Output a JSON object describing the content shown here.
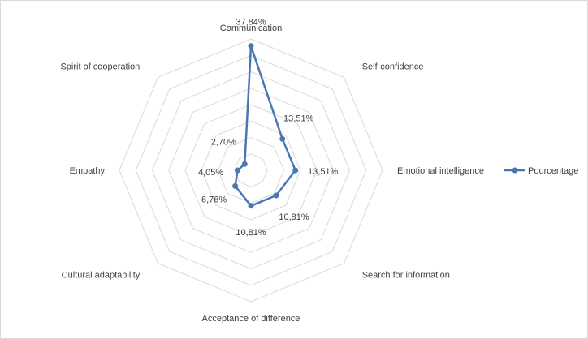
{
  "chart_data": {
    "type": "radar",
    "title": "",
    "categories": [
      "Communication",
      "Self-confidence",
      "Emotional intelligence",
      "Search for information",
      "Acceptance of difference",
      "Cultural adaptability",
      "Empathy",
      "Spirit of cooperation"
    ],
    "series": [
      {
        "name": "Pourcentage",
        "values": [
          37.84,
          13.51,
          13.51,
          10.81,
          10.81,
          6.76,
          4.05,
          2.7
        ],
        "labels": [
          "37,84%",
          "13,51%",
          "13,51%",
          "10,81%",
          "10,81%",
          "6,76%",
          "4,05%",
          "2,70%"
        ],
        "color": "#4a77b4"
      }
    ],
    "rmax": 40,
    "grid_rings": 8,
    "legend": "right"
  }
}
